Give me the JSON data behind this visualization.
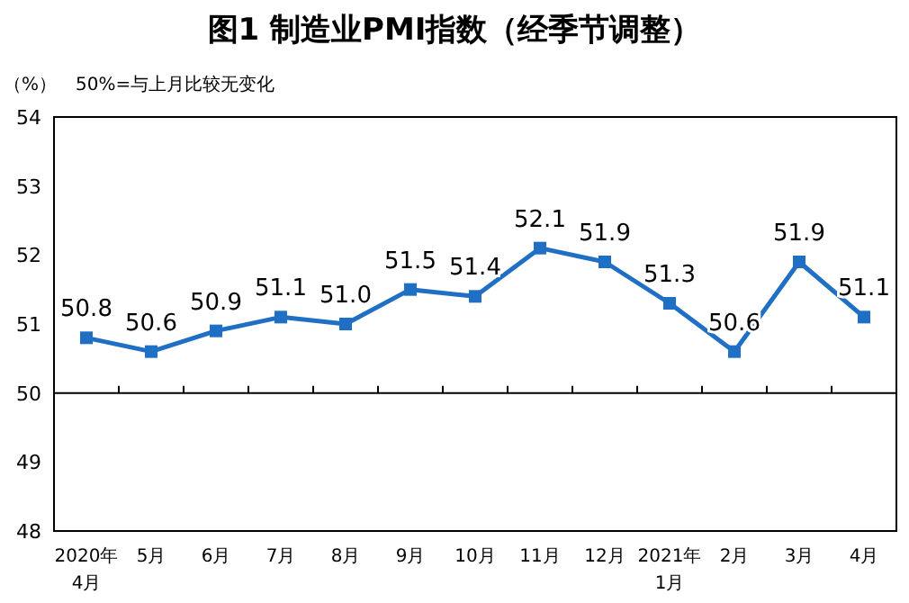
{
  "chart_data": {
    "type": "line",
    "title": "图1 制造业PMI指数（经季节调整）",
    "ylabel": "（%）",
    "annotations": [
      "50%=与上月比较无变化"
    ],
    "categories": [
      "2020年\n4月",
      "5月",
      "6月",
      "7月",
      "8月",
      "9月",
      "10月",
      "11月",
      "12月",
      "2021年\n1月",
      "2月",
      "3月",
      "4月"
    ],
    "series": [
      {
        "color": "#1f6fc5",
        "values": [
          50.8,
          50.6,
          50.9,
          51.1,
          51.0,
          51.5,
          51.4,
          52.1,
          51.9,
          51.3,
          50.6,
          51.9,
          51.1
        ],
        "value_labels": [
          "50.8",
          "50.6",
          "50.9",
          "51.1",
          "51.0",
          "51.5",
          "51.4",
          "52.1",
          "51.9",
          "51.3",
          "50.6",
          "51.9",
          "51.1"
        ]
      }
    ],
    "ylim": [
      48,
      54
    ],
    "yticks": [
      48,
      49,
      50,
      51,
      52,
      53,
      54
    ],
    "ref_lines": [
      {
        "axis": "y",
        "value": 50,
        "color": "#000000"
      }
    ],
    "marker": "square",
    "line_style": "solid",
    "grid": false
  }
}
